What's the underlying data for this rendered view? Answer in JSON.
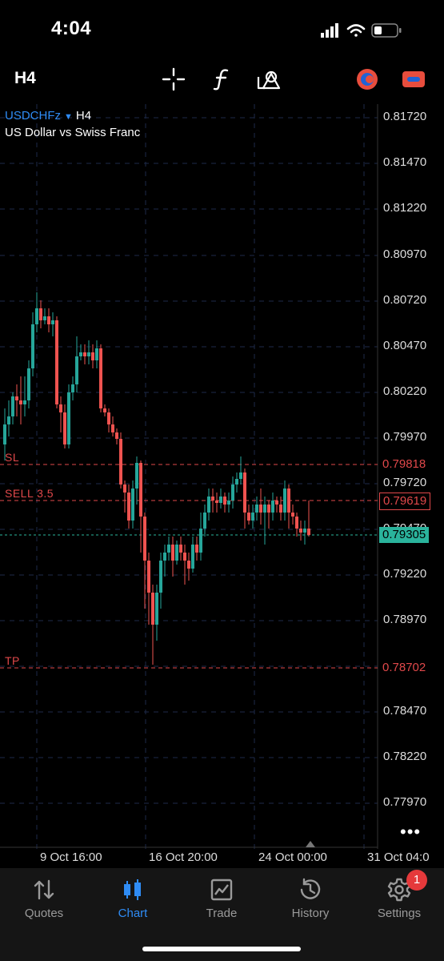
{
  "status_bar": {
    "time": "4:04"
  },
  "toolbar": {
    "timeframe": "H4",
    "tools": [
      "crosshair-icon",
      "function-icon",
      "objects-icon",
      "account-icon",
      "trade-icon"
    ]
  },
  "chart": {
    "symbol": "USDCHFz",
    "timeframe": "H4",
    "description": "US Dollar vs Swiss Franc",
    "y_ticks": [
      "0.81720",
      "0.81470",
      "0.81220",
      "0.80970",
      "0.80720",
      "0.80470",
      "0.80220",
      "0.79970",
      "0.79720",
      "0.79470",
      "0.79220",
      "0.78970",
      "0.78470",
      "0.78220",
      "0.77970"
    ],
    "x_ticks": [
      "9 Oct 16:00",
      "16 Oct 20:00",
      "24 Oct 00:00",
      "31 Oct 04:0"
    ],
    "levels": {
      "sl": {
        "label": "SL",
        "price": "0.79818"
      },
      "sell": {
        "label": "SELL 3.5",
        "price": "0.79619"
      },
      "tp": {
        "label": "TP",
        "price": "0.78702"
      },
      "current": {
        "price": "0.79305"
      }
    },
    "colors": {
      "bull": "#26a69a",
      "bear": "#ef5350",
      "grid": "#1e2a4a",
      "level": "#e0484a",
      "current": "#2ab39c"
    },
    "more_label": "•••"
  },
  "tabs": [
    {
      "label": "Quotes",
      "icon": "quotes-icon"
    },
    {
      "label": "Chart",
      "icon": "chart-icon"
    },
    {
      "label": "Trade",
      "icon": "trade-chart-icon"
    },
    {
      "label": "History",
      "icon": "history-icon"
    },
    {
      "label": "Settings",
      "icon": "settings-gear-icon"
    }
  ],
  "settings_badge": "1"
}
